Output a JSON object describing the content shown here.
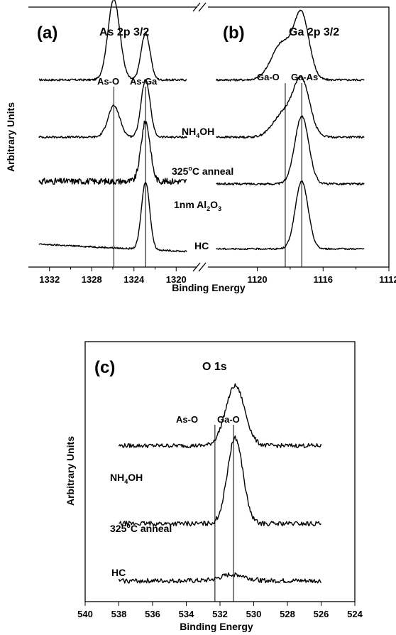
{
  "chart_data": [
    {
      "type": "line",
      "panel_letter": "(a)",
      "title": "As 2p 3/2",
      "xlabel": "Binding Energy",
      "ylabel": "Arbitrary Units",
      "xlim": [
        1334,
        1318
      ],
      "x_ticks": [
        1332,
        1328,
        1324,
        1320
      ],
      "reference_lines": [
        {
          "label": "As-O",
          "x": 1325.9
        },
        {
          "label": "As-Ga",
          "x": 1322.9
        }
      ],
      "series": [
        {
          "name": "NH4OH",
          "baseline": 0.72,
          "peaks": [
            {
              "x": 1325.9,
              "height": 0.31,
              "width": 0.8
            },
            {
              "x": 1322.9,
              "height": 0.18,
              "width": 0.6
            }
          ],
          "noise": 0.004
        },
        {
          "name": "325°C anneal",
          "baseline": 0.5,
          "peaks": [
            {
              "x": 1325.9,
              "height": 0.12,
              "width": 0.8
            },
            {
              "x": 1322.9,
              "height": 0.22,
              "width": 0.6
            }
          ],
          "noise": 0.004
        },
        {
          "name": "1nm Al2O3",
          "baseline": 0.33,
          "peaks": [
            {
              "x": 1322.9,
              "height": 0.23,
              "width": 0.6
            }
          ],
          "noise": 0.012
        },
        {
          "name": "HC",
          "baseline": 0.06,
          "slope": 0.002,
          "peaks": [
            {
              "x": 1322.9,
              "height": 0.26,
              "width": 0.55
            }
          ],
          "noise": 0.003
        }
      ]
    },
    {
      "type": "line",
      "panel_letter": "(b)",
      "title": "Ga 2p 3/2",
      "xlabel": "Binding Energy",
      "ylabel": "Arbitrary Units",
      "xlim": [
        1123,
        1112
      ],
      "x_ticks": [
        1120,
        1116,
        1112
      ],
      "reference_lines": [
        {
          "label": "Ga-O",
          "x": 1118.3
        },
        {
          "label": "Ga-As",
          "x": 1117.3
        }
      ],
      "series": [
        {
          "name": "NH4OH",
          "baseline": 0.72,
          "peaks": [
            {
              "x": 1117.3,
              "height": 0.24,
              "width": 0.65
            },
            {
              "x": 1118.5,
              "height": 0.14,
              "width": 0.9
            }
          ],
          "noise": 0.004
        },
        {
          "name": "325°C anneal",
          "baseline": 0.5,
          "peaks": [
            {
              "x": 1117.3,
              "height": 0.21,
              "width": 0.7
            },
            {
              "x": 1118.4,
              "height": 0.09,
              "width": 0.9
            }
          ],
          "noise": 0.004
        },
        {
          "name": "1nm Al2O3",
          "baseline": 0.32,
          "peaks": [
            {
              "x": 1117.3,
              "height": 0.26,
              "width": 0.6
            }
          ],
          "noise": 0.004
        },
        {
          "name": "HC",
          "baseline": 0.07,
          "peaks": [
            {
              "x": 1117.3,
              "height": 0.26,
              "width": 0.55
            }
          ],
          "noise": 0.003
        }
      ]
    },
    {
      "type": "line",
      "panel_letter": "(c)",
      "title": "O 1s",
      "xlabel": "Binding Energy",
      "ylabel": "Arbitrary Units",
      "xlim": [
        540,
        524
      ],
      "x_ticks": [
        540,
        538,
        536,
        534,
        532,
        530,
        528,
        526,
        524
      ],
      "reference_lines": [
        {
          "label": "As-O",
          "x": 532.3
        },
        {
          "label": "Ga-O",
          "x": 531.2
        }
      ],
      "series": [
        {
          "name": "NH4OH",
          "baseline": 0.6,
          "peaks": [
            {
              "x": 531.1,
              "height": 0.23,
              "width": 0.8
            }
          ],
          "noise": 0.008
        },
        {
          "name": "325°C anneal",
          "baseline": 0.3,
          "peaks": [
            {
              "x": 531.1,
              "height": 0.33,
              "width": 0.65
            }
          ],
          "noise": 0.009
        },
        {
          "name": "HC",
          "baseline": 0.08,
          "peaks": [
            {
              "x": 531.2,
              "height": 0.025,
              "width": 1.0
            }
          ],
          "noise": 0.009
        }
      ]
    }
  ],
  "labels": {
    "panel_a": "(a)",
    "panel_b": "(b)",
    "panel_c": "(c)",
    "title_a": "As 2p 3/2",
    "title_b": "Ga 2p 3/2",
    "title_c": "O 1s",
    "ylabel_top": "Arbitrary Units",
    "ylabel_bottom": "Arbitrary Units",
    "xlabel_top": "Binding Energy",
    "xlabel_bottom": "Binding Energy",
    "peak_as_o_a": "As-O",
    "peak_as_ga_a": "As-Ga",
    "peak_ga_o_b": "Ga-O",
    "peak_ga_as_b": "Ga-As",
    "peak_as_o_c": "As-O",
    "peak_ga_o_c": "Ga-O",
    "trace_nh4oh_main": "NH",
    "trace_nh4oh_sub": "4",
    "trace_nh4oh_tail": "OH",
    "trace_anneal_main": "325",
    "trace_anneal_sup": "o",
    "trace_anneal_tail": "C anneal",
    "trace_al_main": "1nm Al",
    "trace_al_sub": "2",
    "trace_al_mid": "O",
    "trace_al_sub2": "3",
    "trace_hc": "HC",
    "c_nh4oh_main": "NH",
    "c_nh4oh_sub": "4",
    "c_nh4oh_tail": "OH",
    "c_anneal_main": "325",
    "c_anneal_sup": "o",
    "c_anneal_tail": "C anneal",
    "c_hc": "HC"
  }
}
